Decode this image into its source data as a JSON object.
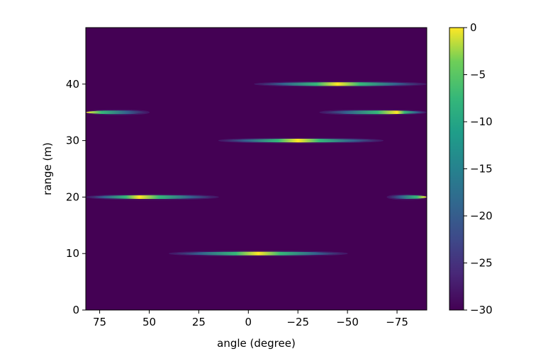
{
  "chart_data": {
    "type": "heatmap",
    "title": "",
    "xlabel": "angle (degree)",
    "ylabel": "range (m)",
    "xlim": [
      82,
      -90
    ],
    "ylim": [
      0,
      50
    ],
    "x_ticks": [
      {
        "value": 75,
        "label": "75"
      },
      {
        "value": 50,
        "label": "50"
      },
      {
        "value": 25,
        "label": "25"
      },
      {
        "value": 0,
        "label": "0"
      },
      {
        "value": -25,
        "label": "−25"
      },
      {
        "value": -50,
        "label": "−50"
      },
      {
        "value": -75,
        "label": "−75"
      }
    ],
    "y_ticks": [
      {
        "value": 0,
        "label": "0"
      },
      {
        "value": 10,
        "label": "10"
      },
      {
        "value": 20,
        "label": "20"
      },
      {
        "value": 30,
        "label": "30"
      },
      {
        "value": 40,
        "label": "40"
      }
    ],
    "colorbar": {
      "colormap": "viridis",
      "range": [
        -30,
        0
      ],
      "ticks": [
        {
          "value": 0,
          "label": "0"
        },
        {
          "value": -5,
          "label": "−5"
        },
        {
          "value": -10,
          "label": "−10"
        },
        {
          "value": -15,
          "label": "−15"
        },
        {
          "value": -20,
          "label": "−20"
        },
        {
          "value": -25,
          "label": "−25"
        },
        {
          "value": -30,
          "label": "−30"
        }
      ]
    },
    "background_value_db": -30,
    "targets": [
      {
        "range": 10,
        "angle_start": 40,
        "angle_end": -50,
        "peak_angle": -5
      },
      {
        "range": 20,
        "angle_start": 82,
        "angle_end": 15,
        "peak_angle": 55
      },
      {
        "range": 20,
        "angle_start": -70,
        "angle_end": -90,
        "peak_angle": -90
      },
      {
        "range": 30,
        "angle_start": 15,
        "angle_end": -68,
        "peak_angle": -25
      },
      {
        "range": 35,
        "angle_start": 82,
        "angle_end": 50,
        "peak_angle": 82
      },
      {
        "range": 35,
        "angle_start": -36,
        "angle_end": -90,
        "peak_angle": -75
      },
      {
        "range": 40,
        "angle_start": -3,
        "angle_end": -90,
        "peak_angle": -45
      }
    ]
  }
}
